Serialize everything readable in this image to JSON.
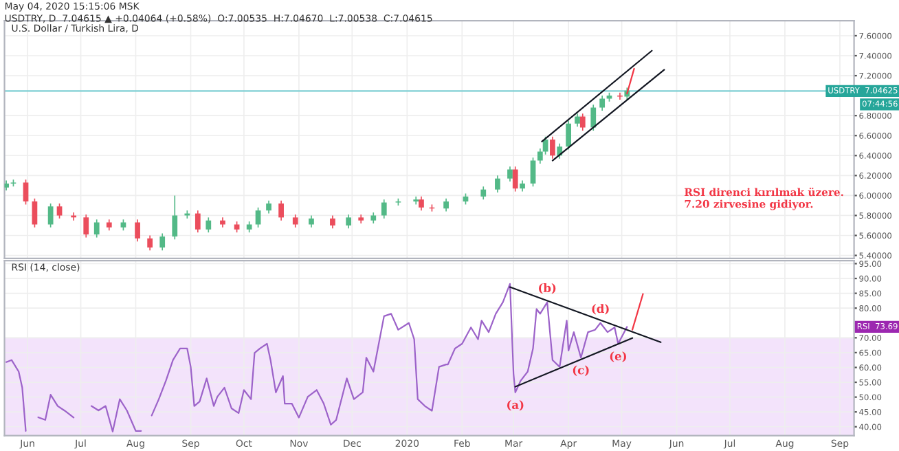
{
  "chart_data": [
    {
      "type": "candlestick",
      "title": "May 04, 2020 15:15:06 MSK",
      "subtitle": "USDTRY, D  7.04615 ▲ +0.04064 (+0.58%)  O:7.00535  H:7.04670  L:7.00538  C:7.04615",
      "annotations": [
        "U.S. Dollar / Turkish Lira, D",
        "RSI direnci kırılmak üzere.\n7.20 zirvesine gidiyor.",
        "07:44:56"
      ],
      "x": [
        "2019-05-20",
        "2019-05-24",
        "2019-05-31",
        "2019-06-05",
        "2019-06-14",
        "2019-06-19",
        "2019-06-27",
        "2019-07-04",
        "2019-07-10",
        "2019-07-17",
        "2019-07-25",
        "2019-08-02",
        "2019-08-09",
        "2019-08-16",
        "2019-08-23",
        "2019-08-30",
        "2019-09-05",
        "2019-09-11",
        "2019-09-19",
        "2019-09-27",
        "2019-10-04",
        "2019-10-09",
        "2019-10-15",
        "2019-10-22",
        "2019-10-30",
        "2019-11-08",
        "2019-11-20",
        "2019-11-29",
        "2019-12-06",
        "2019-12-13",
        "2019-12-19",
        "2019-12-27",
        "2020-01-06",
        "2020-01-09",
        "2020-01-15",
        "2020-01-23",
        "2020-02-03",
        "2020-02-13",
        "2020-02-21",
        "2020-02-28",
        "2020-03-02",
        "2020-03-06",
        "2020-03-12",
        "2020-03-16",
        "2020-03-19",
        "2020-03-23",
        "2020-03-27",
        "2020-04-01",
        "2020-04-06",
        "2020-04-09",
        "2020-04-15",
        "2020-04-20",
        "2020-04-24",
        "2020-04-30",
        "2020-05-04"
      ],
      "ohlc": [
        [
          6.08,
          6.15,
          6.05,
          6.12
        ],
        [
          6.12,
          6.16,
          6.09,
          6.13
        ],
        [
          6.13,
          6.16,
          5.91,
          5.94
        ],
        [
          5.94,
          5.97,
          5.68,
          5.71
        ],
        [
          5.71,
          5.92,
          5.68,
          5.89
        ],
        [
          5.89,
          5.92,
          5.77,
          5.8
        ],
        [
          5.8,
          5.83,
          5.75,
          5.78
        ],
        [
          5.78,
          5.81,
          5.58,
          5.61
        ],
        [
          5.61,
          5.76,
          5.58,
          5.73
        ],
        [
          5.73,
          5.76,
          5.65,
          5.68
        ],
        [
          5.68,
          5.76,
          5.65,
          5.73
        ],
        [
          5.73,
          5.76,
          5.54,
          5.57
        ],
        [
          5.57,
          5.6,
          5.45,
          5.48
        ],
        [
          5.48,
          5.62,
          5.45,
          5.59
        ],
        [
          5.59,
          6.0,
          5.56,
          5.8
        ],
        [
          5.8,
          5.85,
          5.77,
          5.82
        ],
        [
          5.82,
          5.85,
          5.63,
          5.66
        ],
        [
          5.66,
          5.78,
          5.63,
          5.75
        ],
        [
          5.75,
          5.78,
          5.68,
          5.71
        ],
        [
          5.71,
          5.74,
          5.63,
          5.66
        ],
        [
          5.66,
          5.74,
          5.63,
          5.71
        ],
        [
          5.71,
          5.88,
          5.68,
          5.85
        ],
        [
          5.85,
          5.95,
          5.82,
          5.92
        ],
        [
          5.92,
          5.95,
          5.75,
          5.78
        ],
        [
          5.78,
          5.81,
          5.68,
          5.71
        ],
        [
          5.71,
          5.8,
          5.68,
          5.77
        ],
        [
          5.77,
          5.8,
          5.67,
          5.7
        ],
        [
          5.7,
          5.81,
          5.67,
          5.78
        ],
        [
          5.78,
          5.81,
          5.72,
          5.75
        ],
        [
          5.75,
          5.83,
          5.72,
          5.8
        ],
        [
          5.8,
          5.96,
          5.77,
          5.93
        ],
        [
          5.93,
          5.97,
          5.9,
          5.94
        ],
        [
          5.94,
          5.99,
          5.91,
          5.96
        ],
        [
          5.96,
          5.99,
          5.85,
          5.88
        ],
        [
          5.88,
          5.91,
          5.84,
          5.87
        ],
        [
          5.87,
          5.97,
          5.84,
          5.94
        ],
        [
          5.94,
          6.02,
          5.91,
          5.99
        ],
        [
          5.99,
          6.09,
          5.96,
          6.06
        ],
        [
          6.06,
          6.2,
          6.03,
          6.17
        ],
        [
          6.17,
          6.29,
          6.14,
          6.26
        ],
        [
          6.26,
          6.29,
          6.04,
          6.07
        ],
        [
          6.07,
          6.15,
          6.04,
          6.12
        ],
        [
          6.12,
          6.38,
          6.09,
          6.35
        ],
        [
          6.35,
          6.47,
          6.32,
          6.44
        ],
        [
          6.44,
          6.59,
          6.41,
          6.56
        ],
        [
          6.56,
          6.59,
          6.37,
          6.4
        ],
        [
          6.4,
          6.52,
          6.37,
          6.49
        ],
        [
          6.49,
          6.75,
          6.46,
          6.72
        ],
        [
          6.72,
          6.82,
          6.69,
          6.79
        ],
        [
          6.79,
          6.82,
          6.65,
          6.68
        ],
        [
          6.68,
          6.91,
          6.65,
          6.88
        ],
        [
          6.88,
          7.0,
          6.85,
          6.97
        ],
        [
          6.97,
          7.03,
          6.94,
          7.0
        ],
        [
          7.0,
          7.03,
          6.96,
          6.99
        ],
        [
          6.99,
          7.08,
          6.96,
          7.05
        ]
      ],
      "colors": [
        "#53b987",
        "#53b987",
        "#eb4d5c",
        "#eb4d5c",
        "#53b987",
        "#eb4d5c",
        "#eb4d5c",
        "#eb4d5c",
        "#53b987",
        "#eb4d5c",
        "#53b987",
        "#eb4d5c",
        "#eb4d5c",
        "#53b987",
        "#53b987",
        "#53b987",
        "#eb4d5c",
        "#53b987",
        "#eb4d5c",
        "#eb4d5c",
        "#53b987",
        "#53b987",
        "#53b987",
        "#eb4d5c",
        "#eb4d5c",
        "#53b987",
        "#eb4d5c",
        "#53b987",
        "#eb4d5c",
        "#53b987",
        "#53b987",
        "#53b987",
        "#53b987",
        "#eb4d5c",
        "#eb4d5c",
        "#53b987",
        "#53b987",
        "#53b987",
        "#53b987",
        "#53b987",
        "#eb4d5c",
        "#53b987",
        "#53b987",
        "#53b987",
        "#53b987",
        "#eb4d5c",
        "#53b987",
        "#53b987",
        "#53b987",
        "#eb4d5c",
        "#53b987",
        "#53b987",
        "#53b987",
        "#eb4d5c",
        "#53b987"
      ],
      "series": [
        {
          "type": "line",
          "color": "#131722",
          "x": [
            "2020-03-17",
            "2020-05-18"
          ],
          "values": [
            6.54,
            7.45
          ]
        },
        {
          "type": "line",
          "color": "#131722",
          "x": [
            "2020-03-23",
            "2020-05-25"
          ],
          "values": [
            6.35,
            7.26
          ]
        },
        {
          "type": "line",
          "color": "#f23645",
          "x": [
            "2020-05-04",
            "2020-05-08"
          ],
          "values": [
            7.02,
            7.27
          ]
        }
      ],
      "ref_lines": [
        {
          "axis": "y",
          "value": 7.04625,
          "label": "USDTRY  7.04625",
          "color": "#7fcfd3"
        }
      ],
      "xlim": [
        "2019-05-19",
        "2020-09-09"
      ],
      "ylim": [
        5.37,
        7.75
      ],
      "yticks": [
        {
          "value": 5.4,
          "label": "5.40000"
        },
        {
          "value": 5.6,
          "label": "5.60000"
        },
        {
          "value": 5.8,
          "label": "5.80000"
        },
        {
          "value": 6.0,
          "label": "6.00000"
        },
        {
          "value": 6.2,
          "label": "6.20000"
        },
        {
          "value": 6.4,
          "label": "6.40000"
        },
        {
          "value": 6.6,
          "label": "6.60000"
        },
        {
          "value": 6.8,
          "label": "6.80000"
        },
        {
          "value": 7.2,
          "label": "7.20000"
        },
        {
          "value": 7.4,
          "label": "7.40000"
        },
        {
          "value": 7.6,
          "label": "7.60000"
        }
      ],
      "tick_labels": "y",
      "grid": true
    },
    {
      "type": "line",
      "annotations": [
        "RSI (14, close)",
        {
          "text": "(a)",
          "x": "2020-03-02",
          "y": 51.6
        },
        {
          "text": "(b)",
          "x": "2020-03-20",
          "y": 82
        },
        {
          "text": "(c)",
          "x": "2020-04-08",
          "y": 63.3
        },
        {
          "text": "(d)",
          "x": "2020-04-19",
          "y": 75
        },
        {
          "text": "(e)",
          "x": "2020-04-29",
          "y": 68
        },
        "RSI  73.69"
      ],
      "series": [
        {
          "type": "line",
          "color": "#9c63c9",
          "x": [
            "2019-05-20",
            "2019-05-23",
            "2019-05-27",
            "2019-05-29",
            "2019-05-31",
            "2019-06-03",
            "2019-06-07",
            "2019-06-11",
            "2019-06-14",
            "2019-06-18",
            "2019-06-22",
            "2019-06-27",
            "2019-06-30",
            "2019-07-07",
            "2019-07-11",
            "2019-07-15",
            "2019-07-19",
            "2019-07-23",
            "2019-07-27",
            "2019-08-01",
            "2019-08-04",
            "2019-08-07",
            "2019-08-10",
            "2019-08-14",
            "2019-08-18",
            "2019-08-22",
            "2019-08-26",
            "2019-08-30",
            "2019-09-01",
            "2019-09-03",
            "2019-09-06",
            "2019-09-10",
            "2019-09-14",
            "2019-09-16",
            "2019-09-20",
            "2019-09-24",
            "2019-09-28",
            "2019-10-01",
            "2019-10-05",
            "2019-10-07",
            "2019-10-10",
            "2019-10-14",
            "2019-10-16",
            "2019-10-19",
            "2019-10-23",
            "2019-10-24",
            "2019-10-28",
            "2019-11-01",
            "2019-11-06",
            "2019-11-11",
            "2019-11-15",
            "2019-11-19",
            "2019-11-22",
            "2019-11-28",
            "2019-12-02",
            "2019-12-07",
            "2019-12-09",
            "2019-12-13",
            "2019-12-19",
            "2019-12-23",
            "2019-12-27",
            "2020-01-02",
            "2020-01-05",
            "2020-01-07",
            "2020-01-11",
            "2020-01-15",
            "2020-01-19",
            "2020-01-23",
            "2020-01-24",
            "2020-01-28",
            "2020-02-01",
            "2020-02-06",
            "2020-02-10",
            "2020-02-12",
            "2020-02-16",
            "2020-02-20",
            "2020-02-24",
            "2020-02-28",
            "2020-03-01",
            "2020-03-02",
            "2020-03-05",
            "2020-03-09",
            "2020-03-12",
            "2020-03-14",
            "2020-03-16",
            "2020-03-20",
            "2020-03-23",
            "2020-03-27",
            "2020-03-31",
            "2020-04-01",
            "2020-04-04",
            "2020-04-08",
            "2020-04-12",
            "2020-04-16",
            "2020-04-19",
            "2020-04-23",
            "2020-04-27",
            "2020-04-29",
            "2020-05-04"
          ],
          "values": [
            61.8,
            62.5,
            58.6,
            53.2,
            38.6,
            null,
            43.2,
            42.3,
            50.8,
            47,
            45.4,
            43.1,
            null,
            47,
            45.5,
            47,
            38.4,
            49.3,
            45.5,
            38.6,
            38.6,
            null,
            43.8,
            49.3,
            55.5,
            62.5,
            66.4,
            66.4,
            60.2,
            47,
            48.5,
            56.3,
            47,
            50.1,
            53.2,
            46.2,
            44.6,
            52.4,
            49.3,
            64.9,
            66.4,
            68,
            62.5,
            51.6,
            57.1,
            47.8,
            47.8,
            43.1,
            50.1,
            52.4,
            47.8,
            40.7,
            42.3,
            56.3,
            49.3,
            51.6,
            63.3,
            58.6,
            77.3,
            78.1,
            72.7,
            75,
            69.5,
            49.3,
            47,
            45.4,
            60.2,
            61,
            61,
            66.4,
            68,
            73.5,
            69.5,
            75.8,
            71.9,
            78.1,
            82,
            88.2,
            57.9,
            51.6,
            55.5,
            58.6,
            66.4,
            79.7,
            78.1,
            82,
            62.5,
            60.2,
            75.8,
            65.7,
            71.9,
            63.3,
            71.9,
            72.7,
            75,
            71.9,
            73.5,
            68,
            73.7
          ]
        },
        {
          "type": "line",
          "color": "#131722",
          "x": [
            "2020-02-28",
            "2020-05-23"
          ],
          "values": [
            87.1,
            68.5
          ]
        },
        {
          "type": "line",
          "color": "#131722",
          "x": [
            "2020-03-02",
            "2020-05-07"
          ],
          "values": [
            53.5,
            69.9
          ]
        },
        {
          "type": "line",
          "color": "#f23645",
          "x": [
            "2020-05-07",
            "2020-05-13"
          ],
          "values": [
            72.7,
            84.8
          ]
        }
      ],
      "bands": [
        {
          "axis": "y",
          "from": 37,
          "to": 70,
          "color": "#f3e3fb"
        }
      ],
      "xlim": [
        "2019-05-19",
        "2020-09-09"
      ],
      "ylim": [
        37,
        96
      ],
      "xticks": [
        {
          "value": "2019-06-01",
          "label": "Jun"
        },
        {
          "value": "2019-07-01",
          "label": "Jul"
        },
        {
          "value": "2019-08-01",
          "label": "Aug"
        },
        {
          "value": "2019-09-01",
          "label": "Sep"
        },
        {
          "value": "2019-10-01",
          "label": "Oct"
        },
        {
          "value": "2019-11-01",
          "label": "Nov"
        },
        {
          "value": "2019-12-01",
          "label": "Dec"
        },
        {
          "value": "2020-01-01",
          "label": "2020"
        },
        {
          "value": "2020-02-01",
          "label": "Feb"
        },
        {
          "value": "2020-03-01",
          "label": "Mar"
        },
        {
          "value": "2020-04-01",
          "label": "Apr"
        },
        {
          "value": "2020-05-01",
          "label": "May"
        },
        {
          "value": "2020-06-01",
          "label": "Jun"
        },
        {
          "value": "2020-07-01",
          "label": "Jul"
        },
        {
          "value": "2020-08-01",
          "label": "Aug"
        },
        {
          "value": "2020-09-01",
          "label": "Sep"
        }
      ],
      "yticks": [
        {
          "value": 40,
          "label": "40.00"
        },
        {
          "value": 45,
          "label": "45.00"
        },
        {
          "value": 50,
          "label": "50.00"
        },
        {
          "value": 55,
          "label": "55.00"
        },
        {
          "value": 60,
          "label": "60.00"
        },
        {
          "value": 65,
          "label": "65.00"
        },
        {
          "value": 70,
          "label": "70.00"
        },
        {
          "value": 80,
          "label": "80.00"
        },
        {
          "value": 85,
          "label": "85.00"
        },
        {
          "value": 90,
          "label": "90.00"
        },
        {
          "value": 95,
          "label": "95.00"
        }
      ],
      "grid": true
    }
  ]
}
